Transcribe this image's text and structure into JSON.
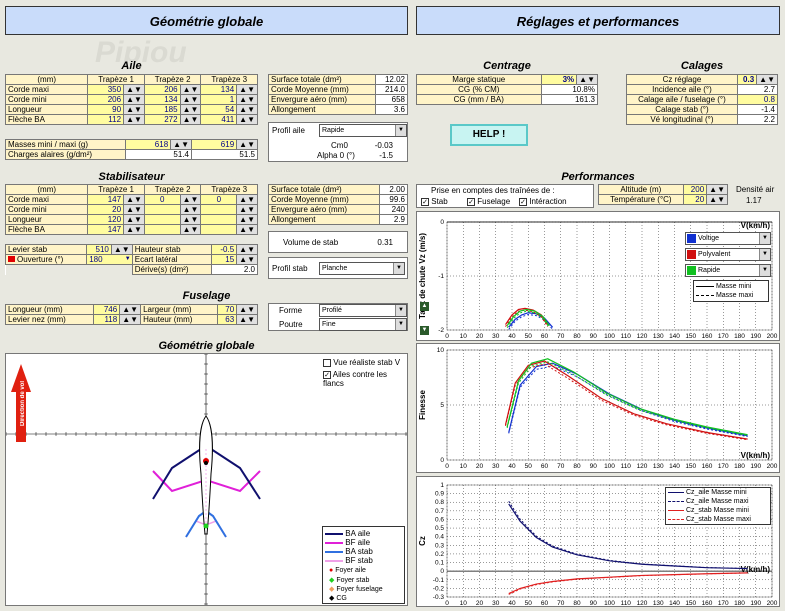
{
  "banners": {
    "left": "Géométrie globale",
    "right": "Réglages et performances"
  },
  "watermark": "Pipiou",
  "aile": {
    "title": "Aile",
    "unit_label": "(mm)",
    "headers": [
      "Trapèze 1",
      "Trapèze 2",
      "Trapèze 3"
    ],
    "rows": [
      {
        "label": "Corde maxi",
        "v": [
          "350",
          "206",
          "134"
        ]
      },
      {
        "label": "Corde mini",
        "v": [
          "206",
          "134",
          "1"
        ]
      },
      {
        "label": "Longueur",
        "v": [
          "90",
          "185",
          "54"
        ]
      },
      {
        "label": "Flèche BA",
        "v": [
          "112",
          "272",
          "411"
        ]
      }
    ],
    "masses_label": "Masses mini / maxi (g)",
    "masses": [
      "618",
      "619"
    ],
    "charges_label": "Charges alaires (g/dm²)",
    "charges": [
      "51.4",
      "51.5"
    ]
  },
  "aile_res": {
    "rows": [
      {
        "label": "Surface totale (dm²)",
        "v": "12.02"
      },
      {
        "label": "Corde Moyenne (mm)",
        "v": "214.0"
      },
      {
        "label": "Envergure aéro (mm)",
        "v": "658"
      },
      {
        "label": "Allongement",
        "v": "3.6"
      }
    ],
    "profil_label": "Profil aile",
    "profil": "Rapide",
    "cm0_label": "Cm0",
    "cm0": "-0.03",
    "alpha_label": "Alpha 0 (°)",
    "alpha": "-1.5"
  },
  "stab": {
    "title": "Stabilisateur",
    "unit_label": "(mm)",
    "headers": [
      "Trapèze 1",
      "Trapèze 2",
      "Trapèze 3"
    ],
    "rows": [
      {
        "label": "Corde maxi",
        "v": [
          "147",
          "0",
          "0"
        ]
      },
      {
        "label": "Corde mini",
        "v": [
          "20",
          "",
          ""
        ]
      },
      {
        "label": "Longueur",
        "v": [
          "120",
          "",
          ""
        ]
      },
      {
        "label": "Flèche BA",
        "v": [
          "147",
          "",
          ""
        ]
      }
    ],
    "levier_label": "Levier stab",
    "levier": "510",
    "hauteur_label": "Hauteur stab",
    "hauteur": "-0.5",
    "ouverture_label": "Ouverture (°)",
    "ouverture": "180",
    "ecart_label": "Ecart latéral",
    "ecart": "15",
    "derive_label": "Dérive(s) (dm²)",
    "derive": "2.0"
  },
  "stab_res": {
    "rows": [
      {
        "label": "Surface totale (dm²)",
        "v": "2.00"
      },
      {
        "label": "Corde Moyenne (mm)",
        "v": "99.6"
      },
      {
        "label": "Envergure aéro (mm)",
        "v": "240"
      },
      {
        "label": "Allongement",
        "v": "2.9"
      }
    ],
    "volume_label": "Volume de stab",
    "volume": "0.31",
    "profil_label": "Profil stab",
    "profil": "Planche"
  },
  "fuselage": {
    "title": "Fuselage",
    "longueur_label": "Longueur (mm)",
    "longueur": "746",
    "largeur_label": "Largeur (mm)",
    "largeur": "70",
    "levier_label": "Levier nez (mm)",
    "levier": "118",
    "hauteur_label": "Hauteur (mm)",
    "hauteur": "63",
    "forme_label": "Forme",
    "forme": "Profilé",
    "poutre_label": "Poutre",
    "poutre": "Fine"
  },
  "geo": {
    "title": "Géométrie globale",
    "chk1": "Vue réaliste stab V",
    "chk2": "Ailes contre les flancs",
    "direction": "Direction de vol",
    "legend": [
      "BA aile",
      "BF aile",
      "BA stab",
      "BF stab",
      "Foyer aile",
      "Foyer stab",
      "Foyer fuselage",
      "CG"
    ],
    "colors": {
      "ba_aile": "#10106e",
      "bf_aile": "#e020d8",
      "ba_stab": "#3070e0",
      "bf_stab": "#f0a0e8",
      "foyer_aile": "#e00000",
      "foyer_stab": "#20d020",
      "foyer_fus": "#f0a060",
      "cg": "#000000"
    }
  },
  "centrage": {
    "title": "Centrage",
    "rows": [
      {
        "label": "Marge statique",
        "v": "3%"
      },
      {
        "label": "CG (% CM)",
        "v": "10.8%"
      },
      {
        "label": "CG (mm / BA)",
        "v": "161.3"
      }
    ]
  },
  "calages": {
    "title": "Calages",
    "rows": [
      {
        "label": "Cz réglage",
        "v": "0.3"
      },
      {
        "label": "Incidence aile (°)",
        "v": "2.7"
      },
      {
        "label": "Calage aile / fuselage (°)",
        "v": "0.8"
      },
      {
        "label": "Calage stab (°)",
        "v": "-1.4"
      },
      {
        "label": "Vé longitudinal (°)",
        "v": "2.2"
      }
    ]
  },
  "help": "HELP !",
  "perf": {
    "title": "Performances",
    "prise": "Prise en comptes des traînées de :",
    "chk": [
      "Stab",
      "Fuselage",
      "Intéraction"
    ],
    "altitude_label": "Altitude (m)",
    "altitude": "200",
    "temp_label": "Température (°C)",
    "temp": "20",
    "densite_label": "Densité air",
    "densite": "1.17",
    "profiles": [
      {
        "name": "Voltige",
        "color": "#1030d0"
      },
      {
        "name": "Polyvalent",
        "color": "#d01010"
      },
      {
        "name": "Rapide",
        "color": "#10c020"
      }
    ],
    "mass_legend": [
      "Masse mini",
      "Masse maxi"
    ],
    "chart3_legend": [
      "Cz_aile Masse mini",
      "Cz_aile Masse maxi",
      "Cz_stab Masse mini",
      "Cz_stab Masse maxi"
    ]
  },
  "chart_data": [
    {
      "type": "line",
      "title": "",
      "xlabel": "V(km/h)",
      "ylabel": "Taux de chute Vz (m/s)",
      "xlim": [
        0,
        200
      ],
      "ylim": [
        -2,
        0
      ],
      "x_ticks": [
        0,
        10,
        20,
        30,
        40,
        50,
        60,
        70,
        80,
        90,
        100,
        110,
        120,
        130,
        140,
        150,
        160,
        170,
        180,
        190,
        200
      ],
      "y_ticks": [
        0,
        -1,
        -2
      ],
      "series": [
        {
          "name": "Voltige",
          "color": "#1030d0",
          "x": [
            38,
            42,
            46,
            50,
            55,
            60,
            65
          ],
          "y": [
            -1.95,
            -1.8,
            -1.72,
            -1.68,
            -1.7,
            -1.78,
            -1.95
          ]
        },
        {
          "name": "Polyvalent",
          "color": "#d01010",
          "x": [
            36,
            40,
            44,
            48,
            53,
            58,
            62
          ],
          "y": [
            -1.9,
            -1.72,
            -1.62,
            -1.6,
            -1.63,
            -1.72,
            -1.9
          ]
        },
        {
          "name": "Rapide",
          "color": "#10c020",
          "x": [
            37,
            41,
            45,
            49,
            54,
            59,
            63
          ],
          "y": [
            -1.92,
            -1.75,
            -1.65,
            -1.62,
            -1.65,
            -1.75,
            -1.92
          ]
        }
      ]
    },
    {
      "type": "line",
      "title": "",
      "xlabel": "V(km/h)",
      "ylabel": "Finesse",
      "xlim": [
        0,
        200
      ],
      "ylim": [
        0,
        10
      ],
      "x_ticks": [
        0,
        10,
        20,
        30,
        40,
        50,
        60,
        70,
        80,
        90,
        100,
        110,
        120,
        130,
        140,
        150,
        160,
        170,
        180,
        190,
        200
      ],
      "y_ticks": [
        0,
        5,
        10
      ],
      "series": [
        {
          "name": "Voltige",
          "color": "#1030d0",
          "x": [
            38,
            45,
            55,
            65,
            80,
            100,
            120,
            140,
            160,
            185
          ],
          "y": [
            2.5,
            6.8,
            8.5,
            8.8,
            7.8,
            6.0,
            4.6,
            3.6,
            2.9,
            2.2
          ]
        },
        {
          "name": "Polyvalent",
          "color": "#d01010",
          "x": [
            36,
            42,
            50,
            60,
            75,
            95,
            115,
            135,
            160,
            185
          ],
          "y": [
            3.2,
            7.0,
            8.6,
            9.0,
            7.6,
            5.6,
            4.2,
            3.3,
            2.5,
            1.9
          ]
        },
        {
          "name": "Rapide",
          "color": "#10c020",
          "x": [
            37,
            44,
            52,
            62,
            78,
            98,
            118,
            140,
            160,
            185
          ],
          "y": [
            3.0,
            7.2,
            8.8,
            9.2,
            8.0,
            6.1,
            4.7,
            3.7,
            3.0,
            2.3
          ]
        }
      ]
    },
    {
      "type": "line",
      "title": "",
      "xlabel": "V(km/h)",
      "ylabel": "Cz",
      "xlim": [
        0,
        200
      ],
      "ylim": [
        -0.3,
        1
      ],
      "x_ticks": [
        0,
        10,
        20,
        30,
        40,
        50,
        60,
        70,
        80,
        90,
        100,
        110,
        120,
        130,
        140,
        150,
        160,
        170,
        180,
        190,
        200
      ],
      "y_ticks": [
        1,
        0.9,
        0.8,
        0.7,
        0.6,
        0.5,
        0.4,
        0.3,
        0.2,
        0.1,
        0,
        -0.1,
        -0.2,
        -0.3
      ],
      "series": [
        {
          "name": "Cz_aile Masse mini",
          "color": "#10106e",
          "x": [
            38,
            45,
            55,
            65,
            80,
            100,
            120,
            140,
            160,
            185
          ],
          "y": [
            0.78,
            0.58,
            0.39,
            0.28,
            0.19,
            0.12,
            0.08,
            0.06,
            0.04,
            0.03
          ]
        },
        {
          "name": "Cz_stab Masse mini",
          "color": "#e02020",
          "x": [
            38,
            45,
            55,
            65,
            80,
            100,
            120,
            140,
            160,
            185
          ],
          "y": [
            -0.26,
            -0.2,
            -0.15,
            -0.12,
            -0.09,
            -0.07,
            -0.05,
            -0.04,
            -0.03,
            -0.02
          ]
        }
      ]
    }
  ]
}
